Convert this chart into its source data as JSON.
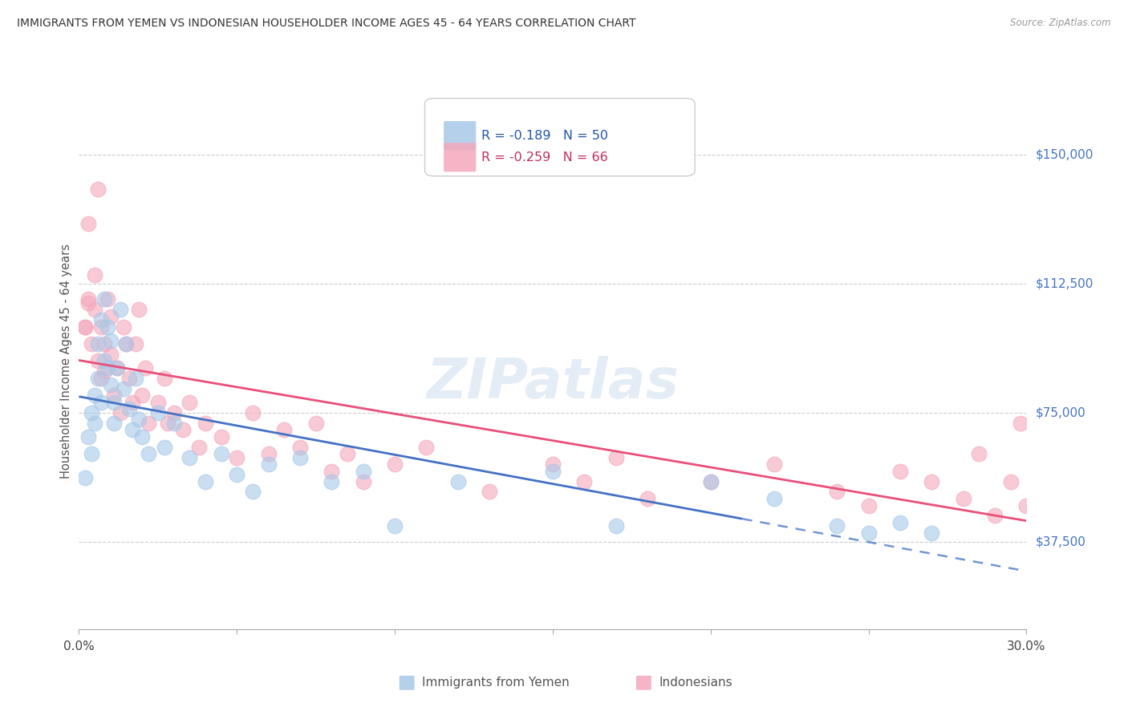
{
  "title": "IMMIGRANTS FROM YEMEN VS INDONESIAN HOUSEHOLDER INCOME AGES 45 - 64 YEARS CORRELATION CHART",
  "source": "Source: ZipAtlas.com",
  "ylabel": "Householder Income Ages 45 - 64 years",
  "yticks": [
    37500,
    75000,
    112500,
    150000
  ],
  "ytick_labels": [
    "$37,500",
    "$75,000",
    "$112,500",
    "$150,000"
  ],
  "xmin": 0.0,
  "xmax": 0.3,
  "ymin": 12000,
  "ymax": 168000,
  "legend1_label": "R = -0.189   N = 50",
  "legend2_label": "R = -0.259   N = 66",
  "series1_color": "#a8c8e8",
  "series2_color": "#f4a8bc",
  "line1_color": "#4472c4",
  "line2_color": "#e8507a",
  "watermark": "ZIPatlas",
  "yemen_x": [
    0.002,
    0.003,
    0.004,
    0.004,
    0.005,
    0.005,
    0.006,
    0.006,
    0.007,
    0.007,
    0.008,
    0.008,
    0.009,
    0.009,
    0.01,
    0.01,
    0.011,
    0.011,
    0.012,
    0.013,
    0.014,
    0.015,
    0.016,
    0.017,
    0.018,
    0.019,
    0.02,
    0.022,
    0.025,
    0.027,
    0.03,
    0.035,
    0.04,
    0.045,
    0.05,
    0.055,
    0.06,
    0.07,
    0.08,
    0.09,
    0.1,
    0.12,
    0.15,
    0.17,
    0.2,
    0.22,
    0.24,
    0.25,
    0.26,
    0.27
  ],
  "yemen_y": [
    56000,
    68000,
    75000,
    63000,
    80000,
    72000,
    95000,
    85000,
    102000,
    78000,
    108000,
    90000,
    100000,
    88000,
    96000,
    83000,
    78000,
    72000,
    88000,
    105000,
    82000,
    95000,
    76000,
    70000,
    85000,
    73000,
    68000,
    63000,
    75000,
    65000,
    72000,
    62000,
    55000,
    63000,
    57000,
    52000,
    60000,
    62000,
    55000,
    58000,
    42000,
    55000,
    58000,
    42000,
    55000,
    50000,
    42000,
    40000,
    43000,
    40000
  ],
  "indonesian_x": [
    0.002,
    0.003,
    0.003,
    0.004,
    0.005,
    0.005,
    0.006,
    0.006,
    0.007,
    0.007,
    0.008,
    0.008,
    0.009,
    0.01,
    0.01,
    0.011,
    0.012,
    0.013,
    0.014,
    0.015,
    0.016,
    0.017,
    0.018,
    0.019,
    0.02,
    0.021,
    0.022,
    0.025,
    0.027,
    0.028,
    0.03,
    0.033,
    0.035,
    0.038,
    0.04,
    0.045,
    0.05,
    0.055,
    0.06,
    0.065,
    0.07,
    0.075,
    0.08,
    0.085,
    0.09,
    0.1,
    0.11,
    0.13,
    0.15,
    0.16,
    0.17,
    0.18,
    0.2,
    0.22,
    0.24,
    0.25,
    0.26,
    0.27,
    0.28,
    0.285,
    0.29,
    0.295,
    0.298,
    0.3,
    0.002,
    0.003
  ],
  "indonesian_y": [
    100000,
    107000,
    130000,
    95000,
    115000,
    105000,
    90000,
    140000,
    85000,
    100000,
    95000,
    87000,
    108000,
    103000,
    92000,
    80000,
    88000,
    75000,
    100000,
    95000,
    85000,
    78000,
    95000,
    105000,
    80000,
    88000,
    72000,
    78000,
    85000,
    72000,
    75000,
    70000,
    78000,
    65000,
    72000,
    68000,
    62000,
    75000,
    63000,
    70000,
    65000,
    72000,
    58000,
    63000,
    55000,
    60000,
    65000,
    52000,
    60000,
    55000,
    62000,
    50000,
    55000,
    60000,
    52000,
    48000,
    58000,
    55000,
    50000,
    63000,
    45000,
    55000,
    72000,
    48000,
    100000,
    108000
  ]
}
